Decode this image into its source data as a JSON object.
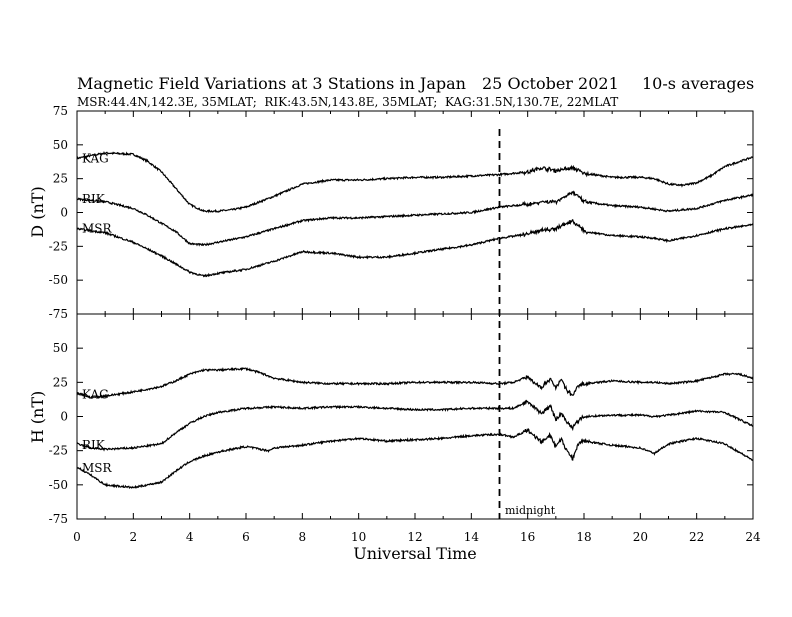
{
  "chart_data": {
    "type": "line",
    "title": "Magnetic Field Variations at 3 Stations in Japan",
    "date": "25 October 2021",
    "averaging": "10-s averages",
    "subtitle": "MSR:44.4N,142.3E, 35MLAT;  RIK:43.5N,143.8E, 35MLAT;  KAG:31.5N,130.7E, 22MLAT",
    "xlabel": "Universal Time",
    "xlim": [
      0,
      24
    ],
    "xticks": [
      "0",
      "2",
      "4",
      "6",
      "8",
      "10",
      "12",
      "14",
      "16",
      "18",
      "20",
      "22",
      "24"
    ],
    "annotation": {
      "text": "midnight",
      "x": 15
    },
    "panels": [
      {
        "ylabel": "D (nT)",
        "ylim": [
          -75,
          75
        ],
        "yticks": [
          "75",
          "50",
          "25",
          "0",
          "-25",
          "-50",
          "-75"
        ],
        "series": [
          {
            "name": "KAG",
            "x": [
              0,
              1,
              2,
              2.5,
              3,
              3.5,
              4,
              4.5,
              5,
              5.5,
              6,
              7,
              8,
              9,
              10,
              11,
              12,
              13,
              14,
              15,
              16,
              16.5,
              17,
              17.6,
              18,
              19,
              20,
              20.5,
              21,
              21.5,
              22,
              22.5,
              23,
              24
            ],
            "values": [
              40,
              44,
              43,
              38,
              30,
              18,
              6,
              1,
              1,
              2,
              4,
              12,
              21,
              24,
              24,
              25,
              26,
              26,
              27,
              28,
              30,
              33,
              31,
              33,
              29,
              26,
              26,
              25,
              21,
              20,
              22,
              27,
              34,
              41
            ]
          },
          {
            "name": "RIK",
            "x": [
              0,
              1,
              2,
              2.5,
              3,
              3.5,
              4,
              4.5,
              5,
              6,
              7,
              8,
              9,
              10,
              11,
              12,
              13,
              14,
              15,
              16,
              16.5,
              17,
              17.6,
              18,
              19,
              20,
              21,
              22,
              23,
              24
            ],
            "values": [
              10,
              8,
              3,
              -2,
              -8,
              -14,
              -23,
              -24,
              -22,
              -18,
              -12,
              -6,
              -4,
              -4,
              -3,
              -2,
              -1,
              0,
              4,
              6,
              8,
              8,
              15,
              8,
              5,
              4,
              1,
              3,
              9,
              13
            ]
          },
          {
            "name": "MSR",
            "x": [
              0,
              1,
              2,
              2.5,
              3,
              3.5,
              4,
              4.5,
              5,
              6,
              7,
              8,
              9,
              10,
              11,
              12,
              13,
              14,
              15,
              16,
              16.5,
              17,
              17.6,
              18,
              19,
              20,
              20.5,
              21,
              22,
              23,
              24
            ],
            "values": [
              -12,
              -15,
              -22,
              -27,
              -32,
              -38,
              -44,
              -47,
              -45,
              -42,
              -36,
              -29,
              -30,
              -33,
              -33,
              -30,
              -27,
              -24,
              -19,
              -16,
              -13,
              -12,
              -6,
              -14,
              -17,
              -18,
              -19,
              -21,
              -17,
              -12,
              -9
            ]
          }
        ]
      },
      {
        "ylabel": "H (nT)",
        "ylim": [
          -75,
          75
        ],
        "yticks": [
          "75",
          "50",
          "25",
          "0",
          "-25",
          "-50",
          "-75"
        ],
        "series": [
          {
            "name": "KAG",
            "x": [
              0,
              0.5,
              1,
              2,
              3,
              3.5,
              4,
              4.5,
              5,
              6,
              6.5,
              7,
              8,
              9,
              10,
              11,
              12,
              13,
              14,
              15,
              15.5,
              16,
              16.5,
              16.8,
              17,
              17.2,
              17.4,
              17.6,
              17.8,
              18,
              19,
              20,
              20.5,
              21,
              22,
              23,
              23.5,
              24
            ],
            "values": [
              17,
              14,
              15,
              18,
              22,
              26,
              31,
              34,
              34,
              35,
              32,
              28,
              25,
              24,
              24,
              24,
              25,
              25,
              25,
              24,
              25,
              29,
              21,
              28,
              21,
              27,
              19,
              15,
              23,
              24,
              26,
              25,
              25,
              24,
              26,
              31,
              31,
              28
            ]
          },
          {
            "name": "RIK",
            "x": [
              0,
              0.5,
              1,
              2,
              3,
              3.5,
              4,
              4.5,
              5,
              6,
              7,
              8,
              9,
              10,
              11,
              12,
              13,
              14,
              15,
              15.5,
              16,
              16.5,
              16.8,
              17,
              17.2,
              17.4,
              17.6,
              17.8,
              18,
              19,
              20,
              20.5,
              21,
              22,
              23,
              24
            ],
            "values": [
              -20,
              -23,
              -24,
              -23,
              -20,
              -12,
              -5,
              0,
              3,
              6,
              7,
              6,
              7,
              7,
              6,
              5,
              5,
              6,
              6,
              6,
              11,
              2,
              8,
              -2,
              2,
              -4,
              -8,
              -3,
              0,
              1,
              1,
              0,
              1,
              4,
              3,
              -7
            ]
          },
          {
            "name": "MSR",
            "x": [
              0,
              0.5,
              1,
              2,
              3,
              3.5,
              4,
              4.5,
              5,
              6,
              6.8,
              7,
              8,
              9,
              10,
              11,
              12,
              13,
              14,
              15,
              15.5,
              16,
              16.5,
              16.8,
              17,
              17.2,
              17.4,
              17.6,
              17.8,
              18,
              19,
              20,
              20.5,
              21,
              22,
              23,
              24
            ],
            "values": [
              -37,
              -43,
              -50,
              -52,
              -48,
              -40,
              -33,
              -29,
              -26,
              -22,
              -25,
              -23,
              -21,
              -18,
              -16,
              -18,
              -17,
              -16,
              -14,
              -13,
              -15,
              -10,
              -19,
              -14,
              -22,
              -17,
              -25,
              -31,
              -20,
              -18,
              -21,
              -23,
              -27,
              -20,
              -16,
              -20,
              -32
            ]
          }
        ]
      }
    ]
  }
}
